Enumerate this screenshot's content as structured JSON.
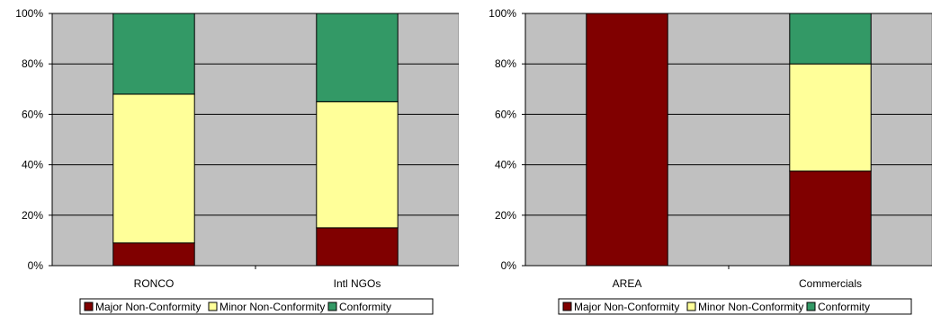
{
  "chart_data": [
    {
      "type": "bar",
      "stacked": true,
      "percent": true,
      "categories": [
        "RONCO",
        "Intl NGOs"
      ],
      "series": [
        {
          "name": "Major Non-Conformity",
          "values": [
            9,
            15
          ],
          "color": "#800000"
        },
        {
          "name": "Minor Non-Conformity",
          "values": [
            59,
            50
          ],
          "color": "#FFFF99"
        },
        {
          "name": "Conformity",
          "values": [
            32,
            35
          ],
          "color": "#339966"
        }
      ],
      "ylim": [
        0,
        100
      ],
      "yticks": [
        "0%",
        "20%",
        "40%",
        "60%",
        "80%",
        "100%"
      ],
      "grid": true,
      "plot_background": "#C0C0C0",
      "legend_position": "bottom"
    },
    {
      "type": "bar",
      "stacked": true,
      "percent": true,
      "categories": [
        "AREA",
        "Commercials"
      ],
      "series": [
        {
          "name": "Major Non-Conformity",
          "values": [
            100,
            37.5
          ],
          "color": "#800000"
        },
        {
          "name": "Minor Non-Conformity",
          "values": [
            0,
            42.5
          ],
          "color": "#FFFF99"
        },
        {
          "name": "Conformity",
          "values": [
            0,
            20
          ],
          "color": "#339966"
        }
      ],
      "ylim": [
        0,
        100
      ],
      "yticks": [
        "0%",
        "20%",
        "40%",
        "60%",
        "80%",
        "100%"
      ],
      "grid": true,
      "plot_background": "#C0C0C0",
      "legend_position": "bottom"
    }
  ]
}
